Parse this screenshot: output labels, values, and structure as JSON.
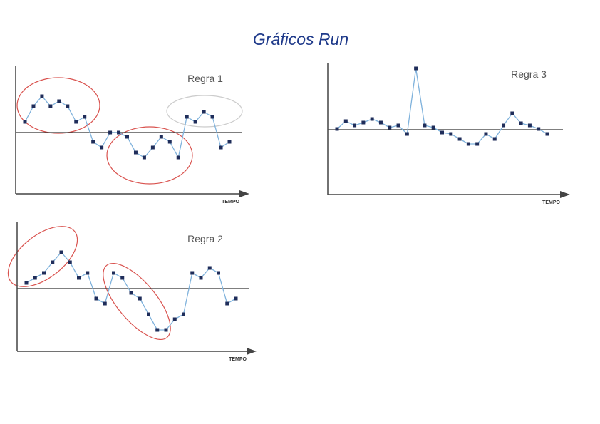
{
  "title": "Gráficos Run",
  "chart_data": [
    {
      "type": "line",
      "title": "Regra 1",
      "x_label": "TEMPO",
      "color": "#7fb2dc",
      "marker_color": "#1f2d5a",
      "centerline": 0,
      "ylim": [
        -86,
        94
      ],
      "values": [
        15,
        37,
        51,
        37,
        44,
        37,
        15,
        22,
        -13,
        -21,
        0,
        0,
        -6,
        -28,
        -35,
        -21,
        -6,
        -13,
        -35,
        22,
        15,
        29,
        22,
        -21,
        -13
      ]
    },
    {
      "type": "line",
      "title": "Regra 2",
      "x_label": "TEMPO",
      "color": "#7fb2dc",
      "marker_color": "#1f2d5a",
      "centerline": 0,
      "ylim": [
        -88,
        93
      ],
      "values": [
        8,
        15,
        22,
        37,
        51,
        37,
        15,
        22,
        -14,
        -21,
        22,
        15,
        -6,
        -14,
        -36,
        -58,
        -58,
        -43,
        -36,
        22,
        15,
        29,
        22,
        -21,
        -14
      ]
    },
    {
      "type": "line",
      "title": "Regra 3",
      "x_label": "TEMPO",
      "color": "#7fb2dc",
      "marker_color": "#1f2d5a",
      "centerline": 0,
      "ylim": [
        -91,
        94
      ],
      "values": [
        1,
        12,
        6,
        10,
        15,
        10,
        3,
        6,
        -6,
        86,
        6,
        3,
        -4,
        -6,
        -13,
        -20,
        -20,
        -6,
        -13,
        6,
        23,
        9,
        6,
        1,
        -6
      ]
    }
  ]
}
